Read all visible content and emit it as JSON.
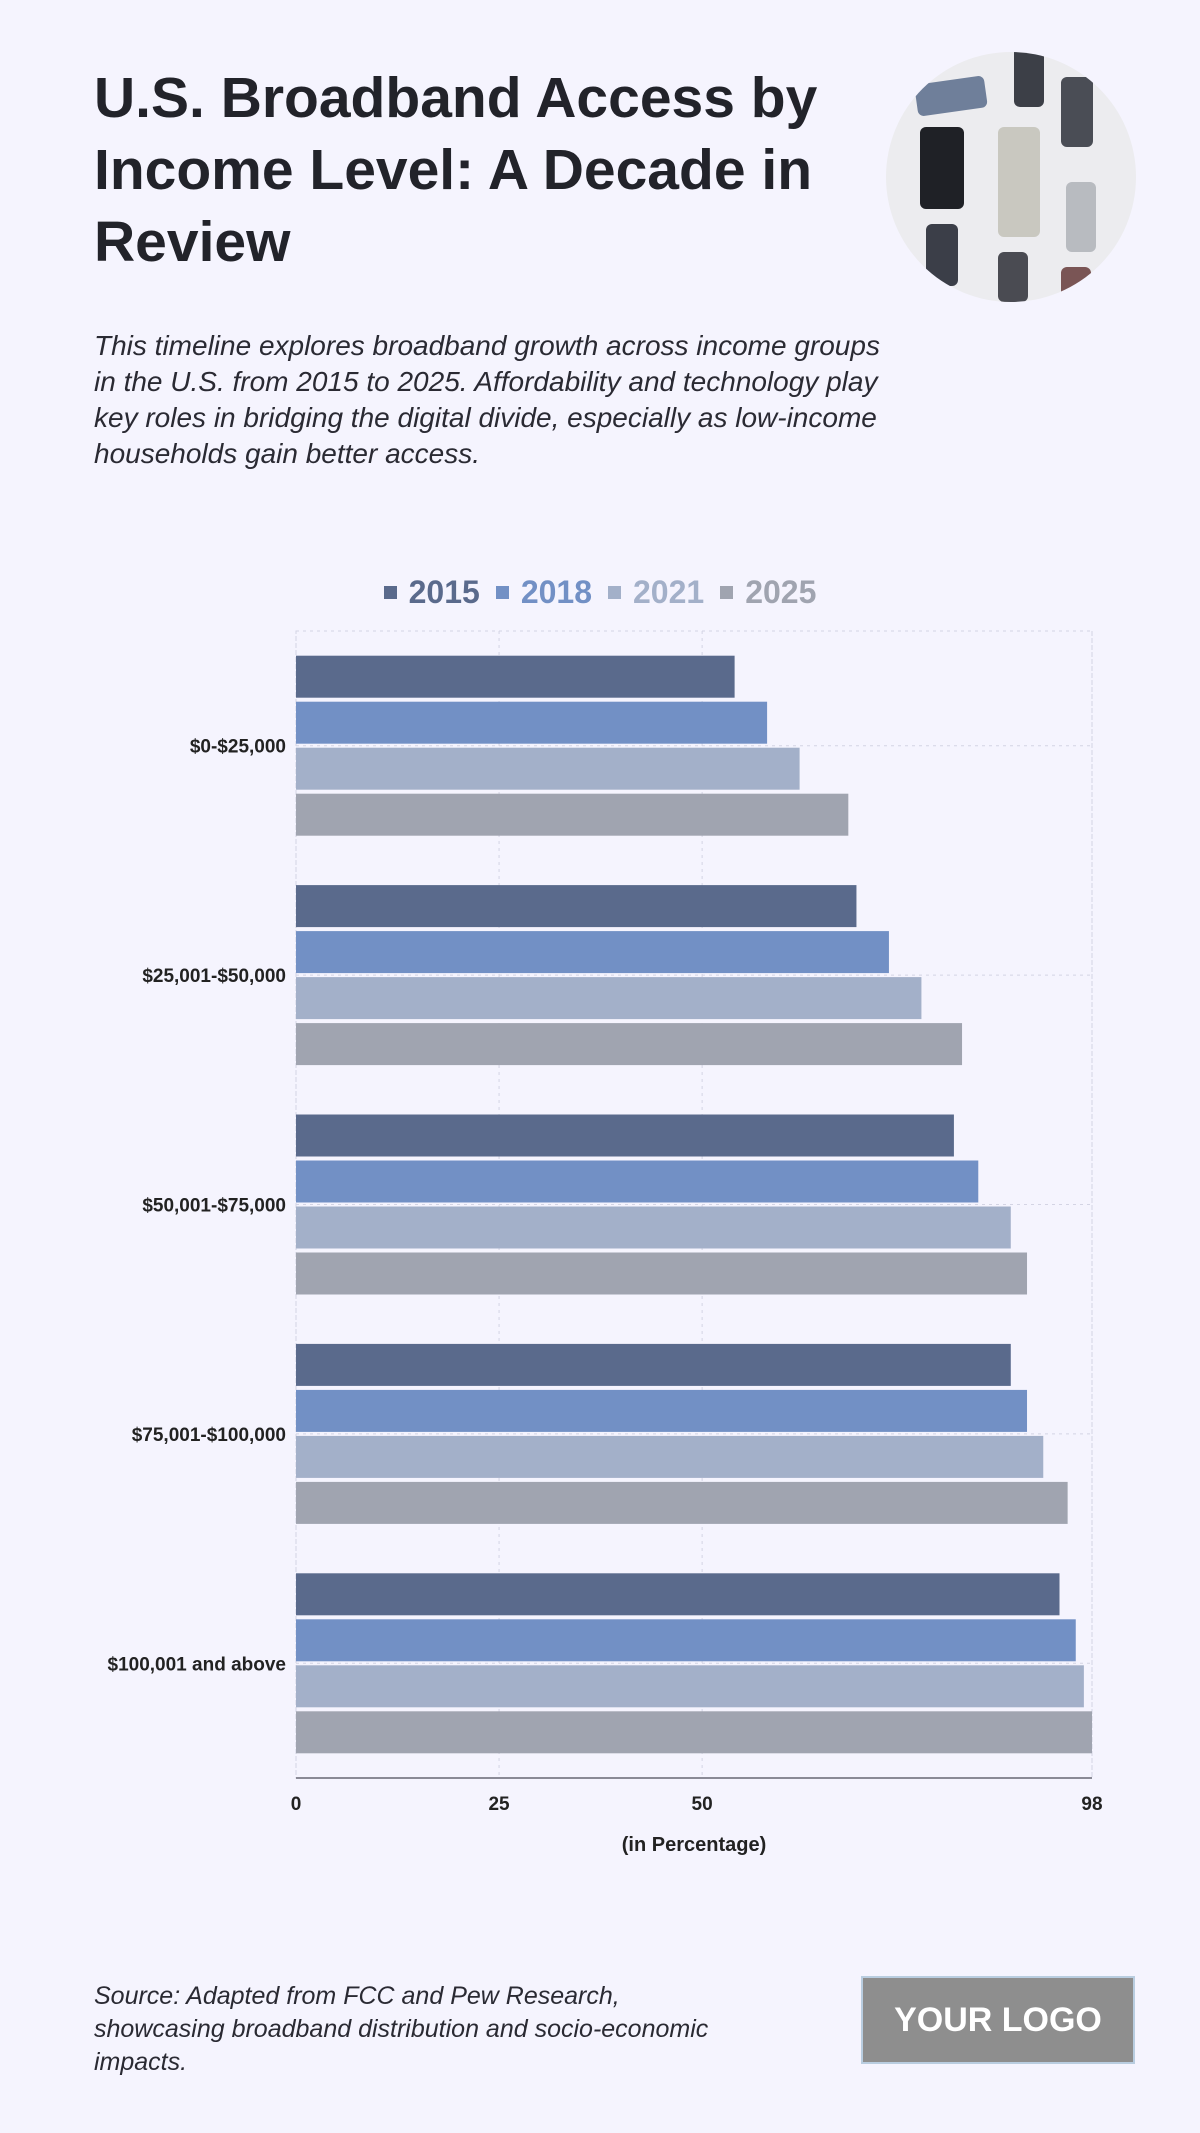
{
  "header": {
    "title": "U.S. Broadband Access by Income Level: A Decade in Review",
    "subtitle": "This timeline explores broadband growth across income groups in the U.S. from 2015 to 2025. Affordability and technology play key roles in bridging the digital divide, especially as low-income households gain better access."
  },
  "footer": {
    "source": "Source: Adapted from FCC and Pew Research, showcasing broadband distribution and socio-economic impacts.",
    "logo": "YOUR LOGO"
  },
  "chart_data": {
    "type": "bar",
    "orientation": "horizontal",
    "categories": [
      "$0-$25,000",
      "$25,001-$50,000",
      "$50,001-$75,000",
      "$75,001-$100,000",
      "$100,001 and above"
    ],
    "series": [
      {
        "name": "2015",
        "color": "#5a6a8c",
        "values": [
          54,
          69,
          81,
          88,
          94
        ]
      },
      {
        "name": "2018",
        "color": "#7290c5",
        "values": [
          58,
          73,
          84,
          90,
          96
        ]
      },
      {
        "name": "2021",
        "color": "#a3b0c9",
        "values": [
          62,
          77,
          88,
          92,
          97
        ]
      },
      {
        "name": "2025",
        "color": "#a0a4b0",
        "values": [
          68,
          82,
          90,
          95,
          98
        ]
      }
    ],
    "xlabel": "(in Percentage)",
    "xticks": [
      0,
      25,
      50,
      98
    ],
    "xlim": [
      0,
      98
    ],
    "grid": true,
    "legend_position": "top"
  }
}
